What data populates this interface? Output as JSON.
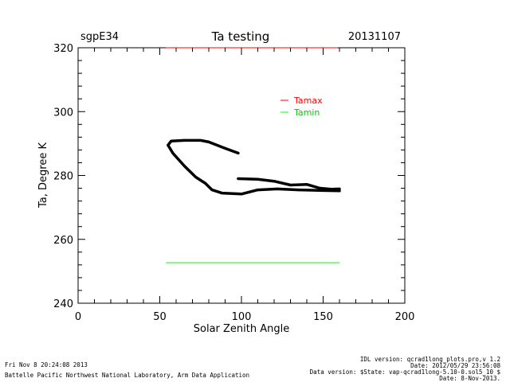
{
  "chart_data": {
    "type": "line",
    "title": "Ta testing",
    "site": "sgpE34",
    "date": "20131107",
    "xlabel": "Solar Zenith Angle",
    "ylabel": "Ta, Degree K",
    "xlim": [
      0,
      200
    ],
    "ylim": [
      240,
      320
    ],
    "x_ticks": [
      0,
      50,
      100,
      150,
      200
    ],
    "y_ticks": [
      240,
      260,
      280,
      300,
      320
    ],
    "x_tick_labels": [
      "0",
      "50",
      "100",
      "150",
      "200"
    ],
    "y_tick_labels": [
      "240",
      "260",
      "280",
      "300",
      "320"
    ],
    "legend": {
      "position": "top-right",
      "entries": [
        {
          "name": "Tamax",
          "color": "#ff0000"
        },
        {
          "name": "Tamin",
          "color": "#00ff00"
        }
      ]
    },
    "series": [
      {
        "name": "Ta",
        "color": "#000000",
        "segments": [
          [
            [
              98,
              287
            ],
            [
              90,
              288.5
            ],
            [
              80,
              290.5
            ],
            [
              75,
              291
            ],
            [
              65,
              291
            ],
            [
              57,
              290.8
            ],
            [
              55,
              289.5
            ],
            [
              58,
              287
            ],
            [
              65,
              283
            ],
            [
              72,
              279.5
            ],
            [
              78,
              277.5
            ],
            [
              82,
              275.5
            ],
            [
              88,
              274.5
            ],
            [
              100,
              274.2
            ],
            [
              110,
              275.5
            ],
            [
              122,
              275.8
            ],
            [
              135,
              275.5
            ],
            [
              150,
              275.3
            ],
            [
              160,
              275.2
            ]
          ],
          [
            [
              98,
              279
            ],
            [
              110,
              278.8
            ],
            [
              120,
              278.2
            ],
            [
              130,
              277
            ],
            [
              140,
              277.2
            ],
            [
              148,
              276
            ],
            [
              155,
              275.7
            ],
            [
              160,
              275.8
            ]
          ]
        ]
      },
      {
        "name": "Tamin",
        "color": "#00ff00",
        "segments": [
          [
            [
              54,
              252.7
            ],
            [
              160,
              252.7
            ]
          ]
        ]
      }
    ]
  },
  "footer": {
    "timestamp": "Fri Nov  8 20:24:08 2013",
    "organization": "Battelle Pacific Northwest National Laboratory, Arm Data Application",
    "idl_version": "IDL version: qcrad1long_plots.pro,v 1.2",
    "idl_date": "Date: 2012/05/29 23:56:08",
    "data_version": "Data version: $State: vap-qcrad1long-5.10-0.sol5_10 $",
    "data_date": "Date: 8-Nov-2013."
  }
}
